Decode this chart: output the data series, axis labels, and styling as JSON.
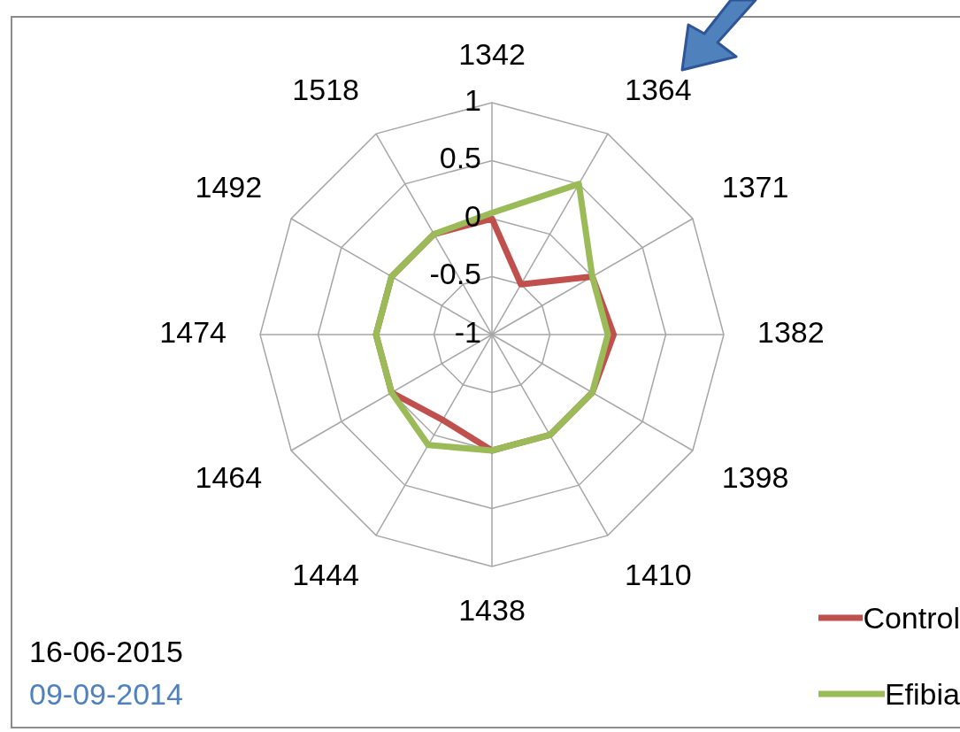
{
  "chart_data": {
    "type": "radar",
    "categories": [
      "1342",
      "1364",
      "1371",
      "1382",
      "1398",
      "1410",
      "1438",
      "1444",
      "1464",
      "1474",
      "1492",
      "1518"
    ],
    "series": [
      {
        "name": "Control",
        "color": "#c0504d",
        "values": [
          0,
          -0.5,
          0,
          0.05,
          0,
          0,
          0,
          -0.15,
          0,
          0,
          0,
          0
        ]
      },
      {
        "name": "Efibia",
        "color": "#9bbb59",
        "values": [
          0.05,
          0.5,
          0,
          0,
          0,
          0,
          0,
          0.1,
          0,
          0,
          0,
          0
        ]
      }
    ],
    "ylim": [
      -1,
      1
    ],
    "yticks": [
      -1,
      -0.5,
      0,
      0.5,
      1
    ],
    "grid": true,
    "legend": "bottom right",
    "marker": "none",
    "annotations": [
      "16-06-2015",
      "09-09-2014"
    ]
  }
}
